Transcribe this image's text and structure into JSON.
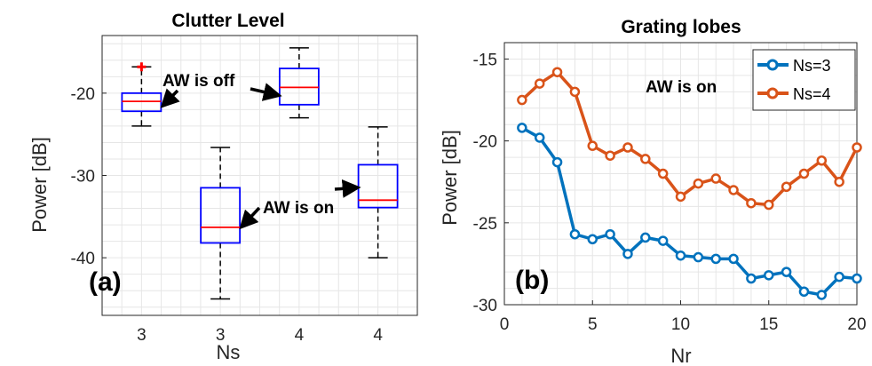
{
  "colors": {
    "box": "#0000ff",
    "median": "#ff0000",
    "outlier": "#ff0000",
    "ns3": "#0072bd",
    "ns4": "#d95319",
    "grid": "#e6e6e6",
    "axis": "#262626"
  },
  "chart_data": [
    {
      "type": "box",
      "title": "Clutter Level",
      "xlabel": "Ns",
      "ylabel": "Power [dB]",
      "panel_label": "(a)",
      "categories": [
        "3",
        "3",
        "4",
        "4"
      ],
      "ylim": [
        -47,
        -13
      ],
      "yticks": [
        -40,
        -30,
        -20
      ],
      "grid": true,
      "boxes": [
        {
          "whisker_low": -24,
          "q1": -22.2,
          "median": -21,
          "q3": -20,
          "whisker_high": -16.8,
          "outliers": [
            -16.8
          ]
        },
        {
          "whisker_low": -45,
          "q1": -38.2,
          "median": -36.3,
          "q3": -31.5,
          "whisker_high": -26.6,
          "outliers": []
        },
        {
          "whisker_low": -23,
          "q1": -21.4,
          "median": -19.3,
          "q3": -17,
          "whisker_high": -14.5,
          "outliers": []
        },
        {
          "whisker_low": -40,
          "q1": -33.9,
          "median": -33,
          "q3": -28.7,
          "whisker_high": -24.1,
          "outliers": []
        }
      ],
      "annotations": [
        {
          "text": "AW is off",
          "targets": [
            0,
            2
          ]
        },
        {
          "text": "AW is on",
          "targets": [
            1,
            3
          ]
        }
      ]
    },
    {
      "type": "line",
      "title": "Grating lobes",
      "xlabel": "Nr",
      "ylabel": "Power [dB]",
      "panel_label": "(b)",
      "annotation": "AW is on",
      "xlim": [
        0,
        20
      ],
      "ylim": [
        -30,
        -14
      ],
      "xticks": [
        0,
        5,
        10,
        15,
        20
      ],
      "yticks": [
        -30,
        -25,
        -20,
        -15
      ],
      "grid": true,
      "legend_position": "top-right",
      "x": [
        1,
        2,
        3,
        4,
        5,
        6,
        7,
        8,
        9,
        10,
        11,
        12,
        13,
        14,
        15,
        16,
        17,
        18,
        19,
        20
      ],
      "series": [
        {
          "name": "Ns=3",
          "color": "#0072bd",
          "values": [
            -19.2,
            -19.8,
            -21.3,
            -25.7,
            -26.0,
            -25.7,
            -26.9,
            -25.9,
            -26.1,
            -27.0,
            -27.1,
            -27.2,
            -27.2,
            -28.4,
            -28.2,
            -28.0,
            -29.2,
            -29.4,
            -28.3,
            -28.4
          ]
        },
        {
          "name": "Ns=4",
          "color": "#d95319",
          "values": [
            -17.5,
            -16.5,
            -15.8,
            -17.0,
            -20.3,
            -20.9,
            -20.4,
            -21.1,
            -22.0,
            -23.4,
            -22.6,
            -22.3,
            -23.0,
            -23.8,
            -23.9,
            -22.8,
            -22.0,
            -21.2,
            -22.5,
            -20.4
          ]
        }
      ]
    }
  ]
}
